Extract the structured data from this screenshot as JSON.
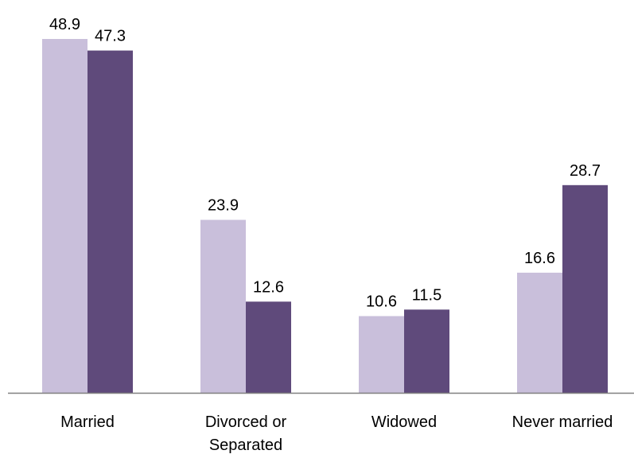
{
  "chart_data": {
    "type": "bar",
    "categories": [
      [
        "Married"
      ],
      [
        "Divorced or",
        "Separated"
      ],
      [
        "Widowed"
      ],
      [
        "Never married"
      ]
    ],
    "series": [
      {
        "values": [
          48.9,
          23.9,
          10.6,
          16.6
        ],
        "color": "#c9bfdb"
      },
      {
        "values": [
          47.3,
          12.6,
          11.5,
          28.7
        ],
        "color": "#5f4a7b"
      }
    ],
    "value_labels": [
      [
        "48.9",
        "23.9",
        "10.6",
        "16.6"
      ],
      [
        "47.3",
        "12.6",
        "11.5",
        "28.7"
      ]
    ],
    "ylim": [
      0,
      48.9
    ],
    "axis_color": "#808080",
    "grid": false,
    "legend": "none"
  }
}
